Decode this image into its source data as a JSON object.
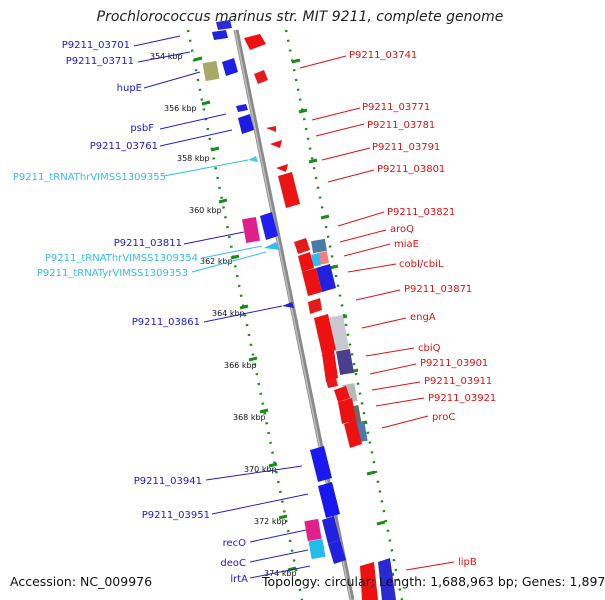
{
  "title": "Prochlorococcus marinus str. MIT 9211, complete genome",
  "footer": {
    "accession": "Accession: NC_009976",
    "topology": "Topology: circular; Length: 1,688,963 bp; Genes: 1,897"
  },
  "colors": {
    "forward_gene": "#2020dd",
    "reverse_gene": "#ee1111",
    "trna": "#33bbee",
    "backbone": "#888888",
    "tick": "#1a8a1a"
  },
  "ticks": [
    "354 kbp",
    "356 kbp",
    "358 kbp",
    "360 kbp",
    "362 kbp",
    "364 kbp",
    "366 kbp",
    "368 kbp",
    "370 kbp",
    "372 kbp",
    "374 kbp"
  ],
  "left_labels": [
    {
      "text": "P9211_03701",
      "type": "forward"
    },
    {
      "text": "P9211_03711",
      "type": "forward"
    },
    {
      "text": "hupE",
      "type": "forward"
    },
    {
      "text": "psbF",
      "type": "forward"
    },
    {
      "text": "P9211_03761",
      "type": "forward"
    },
    {
      "text": "P9211_tRNAThrVIMSS1309355",
      "type": "trna"
    },
    {
      "text": "P9211_03811",
      "type": "forward"
    },
    {
      "text": "P9211_tRNAThrVIMSS1309354",
      "type": "trna"
    },
    {
      "text": "P9211_tRNATyrVIMSS1309353",
      "type": "trna"
    },
    {
      "text": "P9211_03861",
      "type": "forward"
    },
    {
      "text": "P9211_03941",
      "type": "forward"
    },
    {
      "text": "P9211_03951",
      "type": "forward"
    },
    {
      "text": "recO",
      "type": "forward"
    },
    {
      "text": "deoC",
      "type": "forward"
    },
    {
      "text": "lrtA",
      "type": "forward"
    }
  ],
  "right_labels": [
    {
      "text": "P9211_03741",
      "type": "reverse"
    },
    {
      "text": "P9211_03771",
      "type": "reverse"
    },
    {
      "text": "P9211_03781",
      "type": "reverse"
    },
    {
      "text": "P9211_03791",
      "type": "reverse"
    },
    {
      "text": "P9211_03801",
      "type": "reverse"
    },
    {
      "text": "P9211_03821",
      "type": "reverse"
    },
    {
      "text": "aroQ",
      "type": "reverse"
    },
    {
      "text": "miaE",
      "type": "reverse"
    },
    {
      "text": "cobI/cbiL",
      "type": "reverse"
    },
    {
      "text": "P9211_03871",
      "type": "reverse"
    },
    {
      "text": "engA",
      "type": "reverse"
    },
    {
      "text": "cbiQ",
      "type": "reverse"
    },
    {
      "text": "P9211_03901",
      "type": "reverse"
    },
    {
      "text": "P9211_03911",
      "type": "reverse"
    },
    {
      "text": "P9211_03921",
      "type": "reverse"
    },
    {
      "text": "proC",
      "type": "reverse"
    },
    {
      "text": "lipB",
      "type": "reverse"
    }
  ]
}
